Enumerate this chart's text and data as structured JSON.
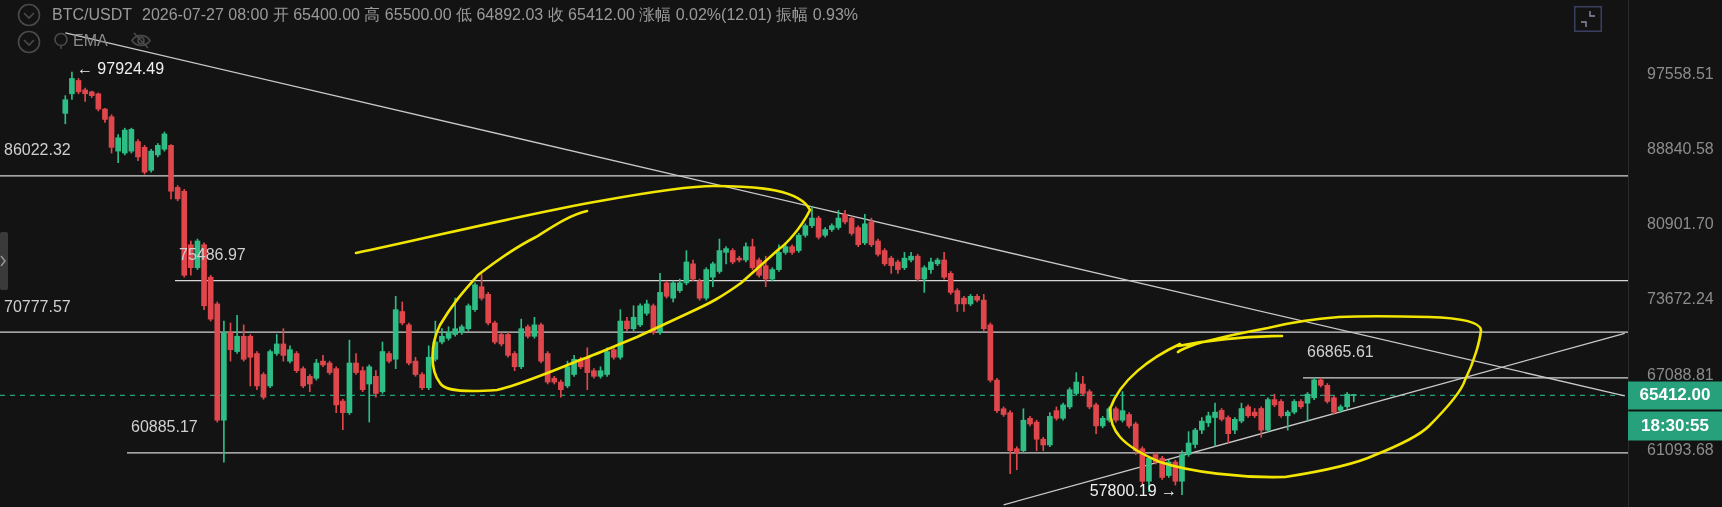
{
  "chart_data": {
    "type": "candlestick",
    "title": "BTC/USDT",
    "subtitle": "2026-07-27 08:00 开 65400.00 高 65500.00 低 64892.03 收 65412.00 涨幅 0.02%(12.01) 振幅 0.93%",
    "categories": [
      null,
      null,
      null,
      null,
      null,
      null,
      null,
      null,
      null,
      null,
      null,
      null,
      null,
      null,
      null,
      null,
      null,
      null,
      null,
      null,
      null,
      null,
      null,
      null,
      null,
      null,
      null,
      null,
      null,
      null,
      null,
      null,
      null,
      null,
      null,
      null,
      null,
      null,
      null,
      null,
      null,
      null,
      null,
      null,
      null,
      null,
      null,
      null,
      null,
      null,
      null,
      null,
      null,
      null,
      null,
      null,
      null,
      null,
      null,
      null,
      null,
      null,
      null,
      null,
      null,
      null,
      null,
      null,
      null,
      null,
      null,
      null,
      null,
      null,
      null,
      null,
      null,
      null,
      null,
      null,
      null,
      null,
      null,
      null,
      null,
      null,
      null,
      null,
      null,
      null,
      null,
      null,
      null,
      null,
      null,
      null,
      null,
      null,
      null,
      null,
      null,
      null,
      null,
      null,
      null,
      null,
      null,
      null,
      null,
      null,
      null,
      null,
      null,
      null,
      null,
      null,
      null,
      null,
      null,
      null,
      null,
      null,
      null,
      null,
      null,
      null,
      null,
      null,
      null,
      null,
      null,
      null,
      null,
      null,
      null,
      null,
      null,
      null,
      null,
      null,
      null,
      null,
      null,
      null,
      null,
      null,
      null,
      null,
      null,
      null,
      null,
      null,
      null,
      null,
      null,
      null,
      null,
      null,
      null,
      null,
      null,
      null,
      null,
      null,
      null,
      null,
      null,
      null,
      null,
      null,
      null,
      null,
      null,
      null,
      null,
      null,
      null,
      null,
      null,
      null,
      null,
      null,
      null,
      null,
      null,
      null,
      null,
      null,
      null,
      null,
      null,
      null,
      null,
      null,
      null,
      null,
      null,
      null,
      null,
      null,
      null,
      null,
      null,
      null,
      null,
      null,
      null,
      null,
      null,
      null,
      null,
      null,
      null,
      null,
      null,
      null,
      null,
      null,
      null,
      null,
      null,
      null,
      null,
      null,
      null,
      null,
      null,
      null,
      null,
      null,
      null,
      null,
      null,
      null,
      null,
      null,
      null
    ],
    "ohlc": [
      [
        93000,
        95076,
        91800,
        94600
      ],
      [
        95300,
        97924.49,
        94620,
        97140
      ],
      [
        96900,
        97140,
        95300,
        95530
      ],
      [
        95760,
        95990,
        94400,
        95300
      ],
      [
        95530,
        95620,
        94850,
        95080
      ],
      [
        95300,
        95400,
        93280,
        93500
      ],
      [
        93500,
        93590,
        91950,
        92300
      ],
      [
        92610,
        92840,
        88510,
        89140
      ],
      [
        88720,
        90560,
        87450,
        90210
      ],
      [
        88510,
        91300,
        88300,
        91080
      ],
      [
        88720,
        91300,
        88510,
        91160
      ],
      [
        89780,
        90000,
        87660,
        88080
      ],
      [
        89140,
        89360,
        86210,
        86420
      ],
      [
        86620,
        88930,
        86420,
        88720
      ],
      [
        88300,
        89570,
        88080,
        89360
      ],
      [
        88930,
        90860,
        88720,
        90640
      ],
      [
        89360,
        89440,
        83590,
        84390
      ],
      [
        84790,
        84990,
        83390,
        83590
      ],
      [
        84390,
        84590,
        75810,
        75990
      ],
      [
        78940,
        79310,
        75990,
        76710
      ],
      [
        76710,
        79500,
        76530,
        79310
      ],
      [
        78940,
        79120,
        72800,
        73150
      ],
      [
        75810,
        75990,
        71770,
        71940
      ],
      [
        73320,
        73500,
        63270,
        63420
      ],
      [
        63420,
        71770,
        60190,
        70750
      ],
      [
        70750,
        71600,
        68270,
        69250
      ],
      [
        69090,
        72280,
        68920,
        70420
      ],
      [
        70420,
        71430,
        68270,
        68430
      ],
      [
        70420,
        70580,
        66190,
        68600
      ],
      [
        68920,
        69090,
        65880,
        66190
      ],
      [
        67140,
        67300,
        65100,
        65260
      ],
      [
        66190,
        69250,
        66040,
        69090
      ],
      [
        68920,
        70580,
        68760,
        69750
      ],
      [
        69750,
        71090,
        68270,
        68760
      ],
      [
        68270,
        69580,
        68110,
        69250
      ],
      [
        68920,
        69090,
        67300,
        67460
      ],
      [
        67630,
        67790,
        66040,
        66190
      ],
      [
        66990,
        67140,
        65720,
        66350
      ],
      [
        66830,
        68430,
        66670,
        68110
      ],
      [
        68270,
        68760,
        67790,
        67950
      ],
      [
        68110,
        68270,
        67140,
        67300
      ],
      [
        67630,
        67790,
        64020,
        64640
      ],
      [
        64950,
        65100,
        62670,
        64020
      ],
      [
        64020,
        70080,
        63870,
        68110
      ],
      [
        68110,
        68920,
        67140,
        67300
      ],
      [
        67460,
        67790,
        65720,
        65880
      ],
      [
        66350,
        67950,
        63270,
        67790
      ],
      [
        66990,
        67460,
        65260,
        65570
      ],
      [
        65720,
        69920,
        65570,
        69090
      ],
      [
        68920,
        69090,
        68110,
        68270
      ],
      [
        68430,
        74020,
        67630,
        72800
      ],
      [
        72630,
        73500,
        71430,
        71600
      ],
      [
        71430,
        71600,
        67950,
        68110
      ],
      [
        68270,
        68600,
        66990,
        67140
      ],
      [
        67140,
        67300,
        65880,
        66040
      ],
      [
        66040,
        69580,
        65880,
        68600
      ],
      [
        68430,
        71770,
        68270,
        69920
      ],
      [
        69920,
        71090,
        69750,
        70420
      ],
      [
        70250,
        71260,
        70080,
        70750
      ],
      [
        70580,
        73850,
        70420,
        71090
      ],
      [
        70750,
        71430,
        70580,
        71260
      ],
      [
        71090,
        73320,
        70920,
        73150
      ],
      [
        72800,
        75270,
        72630,
        75090
      ],
      [
        74910,
        76060,
        73670,
        73850
      ],
      [
        74200,
        74380,
        71430,
        71600
      ],
      [
        71600,
        71770,
        69750,
        69920
      ],
      [
        70580,
        70750,
        69580,
        69750
      ],
      [
        70580,
        70750,
        68600,
        68760
      ],
      [
        68920,
        69090,
        67460,
        67790
      ],
      [
        67790,
        71940,
        67630,
        71090
      ],
      [
        71260,
        71430,
        70250,
        70420
      ],
      [
        70420,
        72110,
        70250,
        71430
      ],
      [
        71430,
        71600,
        68110,
        68270
      ],
      [
        68920,
        69090,
        66350,
        66510
      ],
      [
        66830,
        66990,
        66350,
        66510
      ],
      [
        66510,
        66670,
        65260,
        65880
      ],
      [
        66190,
        68270,
        66040,
        67790
      ],
      [
        67140,
        68760,
        66990,
        68430
      ],
      [
        68430,
        68600,
        67630,
        67790
      ],
      [
        68600,
        69420,
        65880,
        67300
      ],
      [
        67460,
        67630,
        66830,
        66990
      ],
      [
        66990,
        67790,
        66830,
        67460
      ],
      [
        67140,
        69420,
        66990,
        69090
      ],
      [
        69250,
        69420,
        68430,
        68600
      ],
      [
        68600,
        72800,
        68430,
        71770
      ],
      [
        71770,
        72110,
        70920,
        71090
      ],
      [
        71090,
        73150,
        70920,
        72110
      ],
      [
        71430,
        73320,
        71260,
        73150
      ],
      [
        72460,
        73670,
        72280,
        73320
      ],
      [
        73150,
        73320,
        70580,
        70750
      ],
      [
        70750,
        76170,
        70580,
        74380
      ],
      [
        75270,
        75450,
        73850,
        74020
      ],
      [
        73850,
        75450,
        73500,
        75270
      ],
      [
        74550,
        75630,
        74380,
        75270
      ],
      [
        75270,
        78370,
        75090,
        77260
      ],
      [
        77080,
        77450,
        75450,
        75630
      ],
      [
        75450,
        75630,
        73670,
        73850
      ],
      [
        73850,
        76710,
        73670,
        76530
      ],
      [
        75810,
        77260,
        74910,
        77080
      ],
      [
        76350,
        79500,
        76170,
        78370
      ],
      [
        78190,
        78750,
        77080,
        78560
      ],
      [
        78370,
        78560,
        77080,
        77260
      ],
      [
        77630,
        77820,
        77260,
        77450
      ],
      [
        77450,
        79120,
        77260,
        78750
      ],
      [
        78750,
        79500,
        76530,
        76710
      ],
      [
        77450,
        77630,
        75810,
        75990
      ],
      [
        76900,
        77820,
        74910,
        75630
      ],
      [
        75630,
        76710,
        75450,
        76530
      ],
      [
        76530,
        78940,
        76350,
        78190
      ],
      [
        78190,
        79120,
        78000,
        78750
      ],
      [
        78750,
        78940,
        78000,
        78190
      ],
      [
        78370,
        80070,
        78190,
        79880
      ],
      [
        79880,
        81030,
        79690,
        80840
      ],
      [
        80840,
        82790,
        80650,
        81610
      ],
      [
        81610,
        81810,
        79500,
        79690
      ],
      [
        79880,
        80650,
        79690,
        80450
      ],
      [
        80450,
        81030,
        80260,
        80840
      ],
      [
        80650,
        82400,
        80450,
        81610
      ],
      [
        82000,
        82400,
        81030,
        81220
      ],
      [
        81610,
        81810,
        79880,
        80070
      ],
      [
        80650,
        80840,
        78750,
        78940
      ],
      [
        79120,
        82000,
        78940,
        81030
      ],
      [
        81220,
        81610,
        78750,
        78940
      ],
      [
        79310,
        79500,
        77820,
        78000
      ],
      [
        78370,
        78560,
        76900,
        77080
      ],
      [
        77630,
        77820,
        76170,
        76900
      ],
      [
        77260,
        77450,
        76170,
        76530
      ],
      [
        76710,
        78190,
        76530,
        77630
      ],
      [
        77450,
        78190,
        77260,
        77820
      ],
      [
        77820,
        78000,
        75450,
        75630
      ],
      [
        75630,
        76900,
        74380,
        76710
      ],
      [
        76530,
        77630,
        76170,
        77260
      ],
      [
        77080,
        77630,
        76900,
        77450
      ],
      [
        77450,
        78190,
        75630,
        75810
      ],
      [
        76170,
        76350,
        74200,
        74380
      ],
      [
        74550,
        74730,
        72630,
        73320
      ],
      [
        73850,
        74020,
        72630,
        73320
      ],
      [
        73320,
        74200,
        73150,
        74020
      ],
      [
        74020,
        74200,
        73500,
        73670
      ],
      [
        73670,
        74200,
        70920,
        71090
      ],
      [
        71430,
        71600,
        66510,
        66670
      ],
      [
        66670,
        66830,
        64020,
        64180
      ],
      [
        64330,
        64480,
        63720,
        63870
      ],
      [
        64020,
        64180,
        59330,
        61050
      ],
      [
        61200,
        61350,
        59620,
        60910
      ],
      [
        61050,
        64330,
        60910,
        63420
      ],
      [
        63570,
        63720,
        62970,
        63120
      ],
      [
        63270,
        63420,
        61050,
        61930
      ],
      [
        61930,
        62080,
        61050,
        61490
      ],
      [
        61490,
        64020,
        61350,
        63720
      ],
      [
        64180,
        64480,
        63420,
        63570
      ],
      [
        63570,
        64790,
        63420,
        64640
      ],
      [
        64480,
        66040,
        64330,
        65880
      ],
      [
        65570,
        67300,
        65410,
        66510
      ],
      [
        66350,
        66990,
        65410,
        65570
      ],
      [
        65720,
        65880,
        64330,
        64480
      ],
      [
        64640,
        64790,
        62370,
        62970
      ],
      [
        62970,
        63720,
        62820,
        63570
      ],
      [
        63420,
        64480,
        63270,
        64330
      ],
      [
        64330,
        64480,
        63270,
        63420
      ],
      [
        63420,
        65720,
        63270,
        64180
      ],
      [
        63870,
        64020,
        62820,
        62970
      ],
      [
        63120,
        63270,
        60760,
        61050
      ],
      [
        61200,
        61350,
        58490,
        58770
      ],
      [
        58770,
        60620,
        58000,
        60480
      ],
      [
        60760,
        60910,
        60040,
        60190
      ],
      [
        60480,
        60620,
        58910,
        59050
      ],
      [
        59190,
        60330,
        59050,
        60190
      ],
      [
        60190,
        60330,
        58490,
        58770
      ],
      [
        58770,
        61050,
        57800.19,
        60760
      ],
      [
        60760,
        62520,
        60620,
        61640
      ],
      [
        61530,
        62780,
        61260,
        62640
      ],
      [
        62640,
        63630,
        62360,
        63350
      ],
      [
        63210,
        64060,
        62920,
        63770
      ],
      [
        63630,
        64780,
        61390,
        64060
      ],
      [
        64200,
        64350,
        63350,
        63490
      ],
      [
        63630,
        63770,
        61670,
        62360
      ],
      [
        62640,
        63630,
        62360,
        63490
      ],
      [
        63350,
        64780,
        63210,
        64350
      ],
      [
        64490,
        64640,
        63630,
        63770
      ],
      [
        64060,
        64350,
        63630,
        63770
      ],
      [
        64350,
        64490,
        62080,
        62640
      ],
      [
        62640,
        65220,
        62500,
        65070
      ],
      [
        65070,
        65510,
        64490,
        64640
      ],
      [
        64920,
        65070,
        63630,
        63770
      ],
      [
        63770,
        64200,
        62640,
        64060
      ],
      [
        64060,
        65070,
        63920,
        64920
      ],
      [
        64920,
        65070,
        64350,
        64490
      ],
      [
        64780,
        65650,
        63350,
        65510
      ],
      [
        65220,
        66865.61,
        65070,
        66690
      ],
      [
        66690,
        66840,
        66100,
        66240
      ],
      [
        66240,
        66390,
        64780,
        64920
      ],
      [
        65220,
        65360,
        63920,
        64060
      ],
      [
        64200,
        64640,
        64060,
        64490
      ],
      [
        64490,
        65650,
        64350,
        65510
      ],
      [
        65400,
        65500,
        64892.03,
        65412
      ],
      null,
      null,
      null,
      null,
      null,
      null,
      null,
      null,
      null,
      null,
      null,
      null,
      null,
      null,
      null,
      null,
      null,
      null,
      null,
      null,
      null,
      null,
      null,
      null,
      null,
      null,
      null,
      null,
      null,
      null,
      null,
      null,
      null,
      null,
      null,
      null,
      null,
      null,
      null,
      null,
      null
    ],
    "series": [
      {
        "type": "line",
        "color": "#c9c9c9",
        "values": [
          102810,
          null,
          null,
          null,
          null,
          null,
          null,
          null,
          null,
          null,
          null,
          null,
          null,
          null,
          null,
          null,
          null,
          null,
          null,
          null,
          null,
          null,
          null,
          null,
          null,
          null,
          null,
          null,
          null,
          null,
          null,
          null,
          null,
          null,
          null,
          null,
          null,
          null,
          null,
          null,
          null,
          null,
          null,
          null,
          null,
          null,
          null,
          null,
          null,
          null,
          null,
          null,
          null,
          null,
          null,
          null,
          null,
          null,
          null,
          null,
          null,
          null,
          null,
          null,
          null,
          null,
          null,
          null,
          null,
          null,
          null,
          null,
          null,
          null,
          null,
          null,
          null,
          null,
          null,
          null,
          null,
          null,
          null,
          null,
          null,
          null,
          null,
          null,
          null,
          null,
          null,
          null,
          null,
          null,
          null,
          null,
          null,
          null,
          null,
          null,
          null,
          null,
          null,
          null,
          null,
          null,
          null,
          null,
          null,
          null,
          null,
          null,
          null,
          null,
          null,
          null,
          null,
          null,
          null,
          null,
          null,
          null,
          null,
          null,
          null,
          null,
          null,
          null,
          null,
          null,
          null,
          null,
          null,
          null,
          null,
          null,
          null,
          null,
          null,
          null,
          null,
          null,
          null,
          null,
          null,
          null,
          null,
          null,
          null,
          null,
          null,
          null,
          null,
          null,
          null,
          null,
          null,
          null,
          null,
          null,
          null,
          null,
          null,
          null,
          null,
          null,
          null,
          null,
          null,
          null,
          null,
          null,
          null,
          null,
          null,
          null,
          null,
          null,
          null,
          null,
          null,
          null,
          null,
          null,
          null,
          null,
          null,
          null,
          null,
          null,
          null,
          null,
          null,
          null,
          null,
          null,
          null,
          null,
          null,
          null,
          null,
          null,
          null,
          null,
          null,
          null,
          null,
          null,
          null,
          null,
          null,
          null,
          null,
          null,
          null,
          null,
          null,
          null,
          null,
          null,
          null,
          null,
          null,
          null,
          null,
          null,
          null,
          null,
          null,
          null,
          null,
          null,
          null,
          null,
          null,
          null,
          65370
        ]
      },
      {
        "type": "line",
        "color": "#c9c9c9",
        "values": [
          null,
          null,
          null,
          null,
          null,
          null,
          null,
          null,
          null,
          null,
          null,
          null,
          null,
          null,
          null,
          null,
          null,
          null,
          null,
          null,
          null,
          null,
          null,
          null,
          null,
          null,
          null,
          null,
          null,
          null,
          null,
          null,
          null,
          null,
          null,
          null,
          null,
          null,
          null,
          null,
          null,
          null,
          null,
          null,
          null,
          null,
          null,
          null,
          null,
          null,
          null,
          null,
          null,
          null,
          null,
          null,
          null,
          null,
          null,
          null,
          null,
          null,
          null,
          null,
          null,
          null,
          null,
          null,
          null,
          null,
          null,
          null,
          null,
          null,
          null,
          null,
          null,
          null,
          null,
          null,
          null,
          null,
          null,
          null,
          null,
          null,
          null,
          null,
          null,
          null,
          null,
          null,
          null,
          null,
          null,
          null,
          null,
          null,
          null,
          null,
          null,
          null,
          null,
          null,
          null,
          null,
          null,
          null,
          null,
          null,
          null,
          null,
          null,
          null,
          null,
          null,
          null,
          null,
          null,
          null,
          null,
          null,
          null,
          null,
          null,
          null,
          null,
          null,
          null,
          null,
          null,
          null,
          null,
          null,
          null,
          null,
          null,
          null,
          null,
          null,
          null,
          null,
          57063,
          null,
          null,
          null,
          null,
          null,
          null,
          null,
          null,
          null,
          null,
          null,
          null,
          null,
          null,
          null,
          null,
          null,
          null,
          null,
          null,
          null,
          null,
          null,
          null,
          null,
          null,
          null,
          null,
          null,
          null,
          null,
          null,
          null,
          null,
          null,
          null,
          null,
          null,
          null,
          null,
          null,
          null,
          null,
          null,
          null,
          null,
          null,
          null,
          null,
          null,
          null,
          null,
          null,
          null,
          null,
          null,
          null,
          null,
          null,
          null,
          null,
          null,
          null,
          null,
          null,
          null,
          null,
          null,
          null,
          null,
          null,
          null,
          null,
          null,
          null,
          null,
          null,
          null,
          null,
          null,
          null,
          null,
          null,
          null,
          null,
          null,
          null,
          null,
          null,
          null,
          null,
          null,
          null,
          70680
        ]
      }
    ],
    "ref_lines": [
      {
        "axis": "y",
        "value": 86022.32,
        "label": "86022.32",
        "color": "#d6d6d6"
      },
      {
        "axis": "y",
        "value": 75486.97,
        "label": "75486.97",
        "color": "#d6d6d6"
      },
      {
        "axis": "y",
        "value": 70777.57,
        "label": "70777.57",
        "color": "#d6d6d6"
      },
      {
        "axis": "y",
        "value": 60885.17,
        "label": "60885.17",
        "color": "#d6d6d6"
      },
      {
        "axis": "y",
        "value": 66865.61,
        "label": "66865.61",
        "color": "#d6d6d6"
      },
      {
        "axis": "y",
        "value": 65412,
        "label": "65412.00",
        "color": "#26a17b",
        "line_style": "dashed"
      }
    ],
    "annotations": [
      "EMA",
      "← 97924.49",
      "57800.19 →",
      "18:30:55"
    ],
    "ylim": [
      56910,
      107130
    ],
    "yticks": [
      97558.51,
      88840.58,
      {
        "value": 80901.7,
        "label": "80901.70"
      },
      73672.24,
      67088.81,
      61093.68
    ],
    "log": "y",
    "tick_labels": "y"
  }
}
